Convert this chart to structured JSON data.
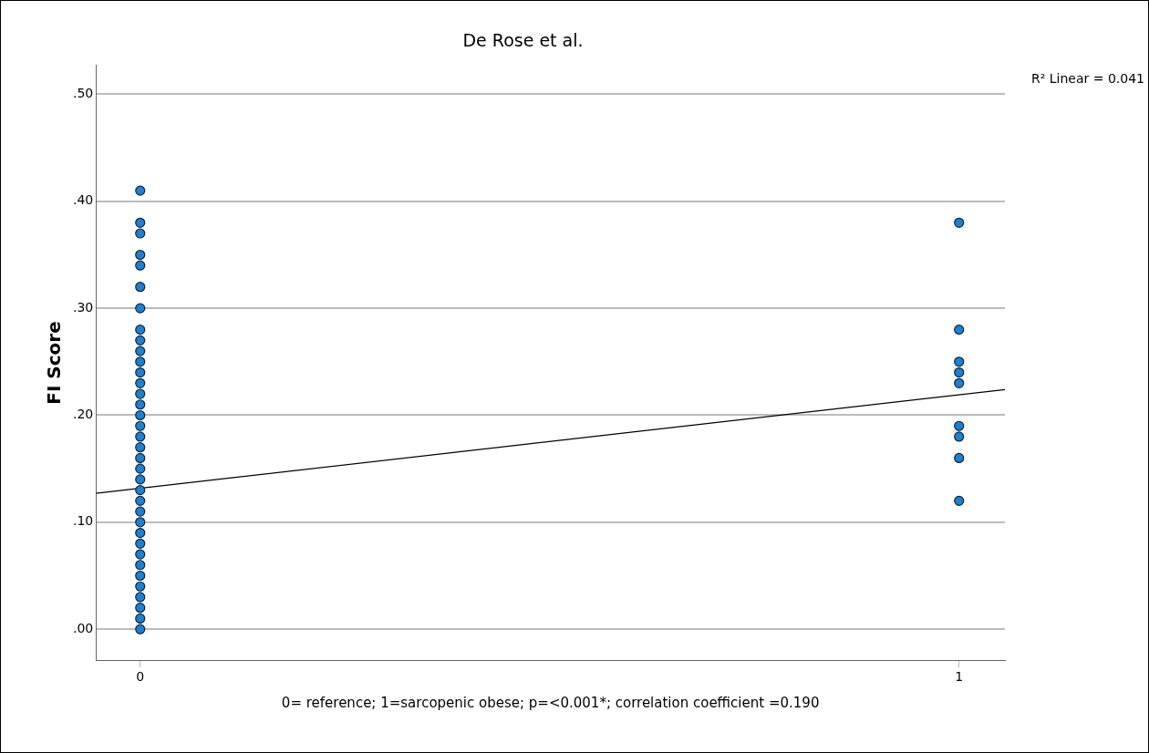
{
  "chart_data": {
    "type": "scatter",
    "title": "De Rose et al.",
    "xlabel": "0= reference; 1=sarcopenic obese; p=<0.001*; correlation coefficient =0.190",
    "ylabel": "FI Score",
    "annotations": [
      "R² Linear = 0.041"
    ],
    "xlim": [
      -0.054,
      1.056
    ],
    "xticks": [
      0,
      1
    ],
    "ylim": [
      -0.029,
      0.527
    ],
    "yticks": [
      {
        "value": 0,
        "label": ".00"
      },
      {
        "value": 0.1,
        "label": ".10"
      },
      {
        "value": 0.2,
        "label": ".20"
      },
      {
        "value": 0.3,
        "label": ".30"
      },
      {
        "value": 0.4,
        "label": ".40"
      },
      {
        "value": 0.5,
        "label": ".50"
      }
    ],
    "grid": "y",
    "marker": "circle",
    "series": [
      {
        "color": "#1f7fd0",
        "x": [
          0,
          0,
          0,
          0,
          0,
          0,
          0,
          0,
          0,
          0,
          0,
          0,
          0,
          0,
          0,
          0,
          0,
          0,
          0,
          0,
          0,
          0,
          0,
          0,
          0,
          0,
          0,
          0,
          0,
          0,
          0,
          0,
          0,
          0,
          0,
          0,
          1,
          1,
          1,
          1,
          1,
          1,
          1,
          1,
          1
        ],
        "values": [
          0.41,
          0.38,
          0.37,
          0.35,
          0.34,
          0.32,
          0.3,
          0.28,
          0.27,
          0.26,
          0.25,
          0.24,
          0.23,
          0.22,
          0.21,
          0.2,
          0.19,
          0.18,
          0.17,
          0.16,
          0.15,
          0.14,
          0.13,
          0.12,
          0.11,
          0.1,
          0.09,
          0.08,
          0.07,
          0.06,
          0.05,
          0.04,
          0.03,
          0.02,
          0.01,
          0.0,
          0.38,
          0.28,
          0.25,
          0.24,
          0.23,
          0.19,
          0.18,
          0.16,
          0.12
        ]
      },
      {
        "type": "line",
        "color": "#000000",
        "marker": "none",
        "x": [
          -0.054,
          1.056
        ],
        "values": [
          0.127,
          0.224
        ]
      }
    ]
  }
}
